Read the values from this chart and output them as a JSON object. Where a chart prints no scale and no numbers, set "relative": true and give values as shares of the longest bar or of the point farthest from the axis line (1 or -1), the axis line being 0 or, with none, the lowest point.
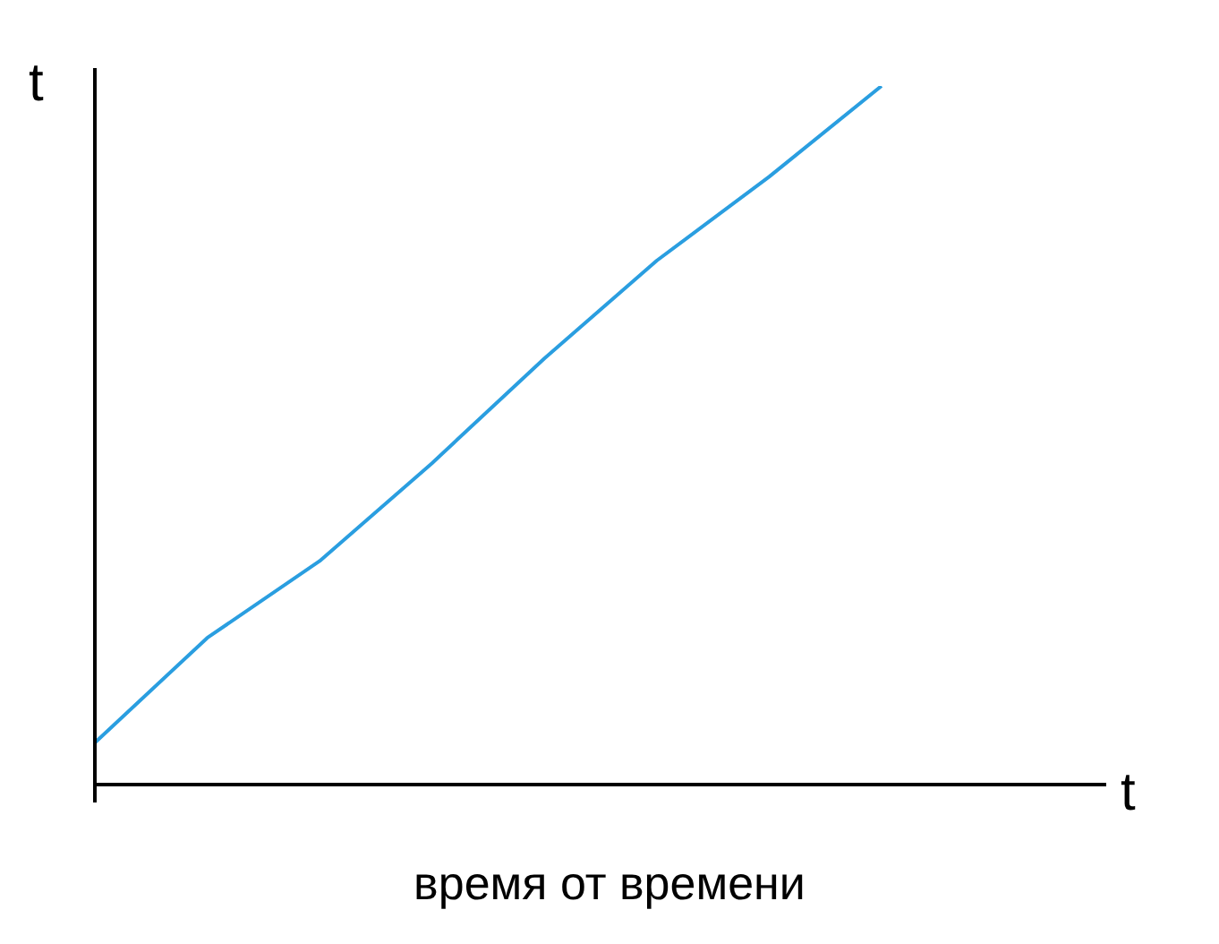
{
  "chart_data": {
    "type": "line",
    "relative": true,
    "xlabel": "время от времени",
    "ylabel": "t",
    "annotations": [
      "t"
    ],
    "categories": [
      null,
      null,
      null,
      null,
      null,
      null,
      null,
      null,
      null,
      null
    ],
    "series": [
      {
        "color": "#2a9ee0",
        "values": [
          0.06,
          0.21,
          0.32,
          0.46,
          0.61,
          0.75,
          0.87,
          1,
          null,
          null
        ]
      }
    ],
    "marker": "none",
    "grid": false,
    "legend": false
  }
}
